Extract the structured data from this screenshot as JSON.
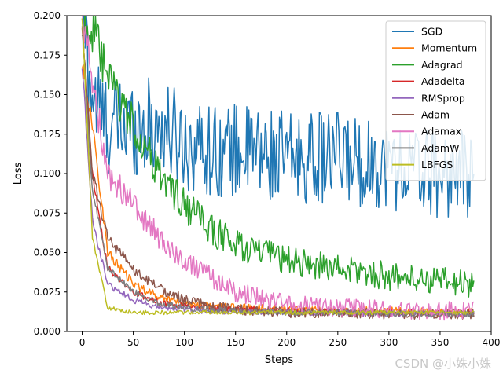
{
  "chart_data": {
    "type": "line",
    "title": "",
    "xlabel": "Steps",
    "ylabel": "Loss",
    "xlim": [
      -15,
      400
    ],
    "ylim": [
      0.0,
      0.2
    ],
    "xticks": [
      0,
      50,
      100,
      150,
      200,
      250,
      300,
      350,
      400
    ],
    "xtick_labels": [
      "0",
      "50",
      "100",
      "150",
      "200",
      "250",
      "300",
      "350",
      "400"
    ],
    "yticks": [
      0.0,
      0.025,
      0.05,
      0.075,
      0.1,
      0.125,
      0.15,
      0.175,
      0.2
    ],
    "ytick_labels": [
      "0.000",
      "0.025",
      "0.050",
      "0.075",
      "0.100",
      "0.125",
      "0.150",
      "0.175",
      "0.200"
    ],
    "legend_position": "top-right",
    "steps": 384,
    "series": [
      {
        "name": "SGD",
        "color": "#1f77b4",
        "x": [
          0,
          10,
          25,
          50,
          75,
          100,
          125,
          150,
          200,
          250,
          300,
          350,
          383
        ],
        "y": [
          0.2,
          0.15,
          0.13,
          0.13,
          0.13,
          0.12,
          0.115,
          0.115,
          0.11,
          0.11,
          0.105,
          0.1,
          0.1
        ],
        "noise": 0.028
      },
      {
        "name": "Momentum",
        "color": "#ff7f0e",
        "x": [
          0,
          10,
          25,
          50,
          75,
          100,
          125,
          150,
          200,
          250,
          300,
          350,
          383
        ],
        "y": [
          0.17,
          0.13,
          0.05,
          0.03,
          0.022,
          0.018,
          0.016,
          0.015,
          0.014,
          0.013,
          0.013,
          0.012,
          0.012
        ],
        "noise": 0.004
      },
      {
        "name": "Adagrad",
        "color": "#2ca02c",
        "x": [
          0,
          10,
          25,
          50,
          75,
          100,
          125,
          150,
          200,
          250,
          300,
          350,
          383
        ],
        "y": [
          0.2,
          0.19,
          0.16,
          0.13,
          0.1,
          0.08,
          0.065,
          0.055,
          0.045,
          0.04,
          0.035,
          0.032,
          0.03
        ],
        "noise": 0.012
      },
      {
        "name": "Adadelta",
        "color": "#d62728",
        "x": [
          0,
          10,
          25,
          50,
          75,
          100,
          125,
          150,
          200,
          250,
          300,
          350,
          383
        ],
        "y": [
          0.19,
          0.1,
          0.04,
          0.025,
          0.018,
          0.016,
          0.015,
          0.014,
          0.013,
          0.013,
          0.012,
          0.012,
          0.012
        ],
        "noise": 0.003
      },
      {
        "name": "RMSprop",
        "color": "#9467bd",
        "x": [
          0,
          10,
          25,
          50,
          75,
          100,
          125,
          150,
          200,
          250,
          300,
          350,
          383
        ],
        "y": [
          0.17,
          0.07,
          0.03,
          0.02,
          0.015,
          0.014,
          0.013,
          0.013,
          0.012,
          0.012,
          0.011,
          0.011,
          0.011
        ],
        "noise": 0.003
      },
      {
        "name": "Adam",
        "color": "#8c564b",
        "x": [
          0,
          10,
          25,
          50,
          75,
          100,
          125,
          150,
          200,
          250,
          300,
          350,
          383
        ],
        "y": [
          0.19,
          0.1,
          0.06,
          0.038,
          0.028,
          0.02,
          0.016,
          0.014,
          0.012,
          0.012,
          0.011,
          0.011,
          0.011
        ],
        "noise": 0.005
      },
      {
        "name": "Adamax",
        "color": "#e377c2",
        "x": [
          0,
          10,
          25,
          50,
          75,
          100,
          125,
          150,
          200,
          250,
          300,
          350,
          383
        ],
        "y": [
          0.2,
          0.16,
          0.1,
          0.08,
          0.06,
          0.045,
          0.035,
          0.025,
          0.017,
          0.015,
          0.014,
          0.013,
          0.013
        ],
        "noise": 0.009
      },
      {
        "name": "AdamW",
        "color": "#7f7f7f",
        "x": [
          0,
          10,
          25,
          50,
          75,
          100,
          125,
          150,
          200,
          250,
          300,
          350,
          383
        ],
        "y": [
          0.19,
          0.09,
          0.04,
          0.025,
          0.018,
          0.015,
          0.014,
          0.013,
          0.012,
          0.012,
          0.011,
          0.011,
          0.011
        ],
        "noise": 0.003
      },
      {
        "name": "LBFGS",
        "color": "#bcbd22",
        "x": [
          0,
          10,
          25,
          50,
          75,
          100,
          125,
          150,
          200,
          250,
          300,
          350,
          383
        ],
        "y": [
          0.2,
          0.06,
          0.015,
          0.012,
          0.012,
          0.012,
          0.012,
          0.012,
          0.012,
          0.012,
          0.012,
          0.012,
          0.012
        ],
        "noise": 0.002
      }
    ]
  },
  "watermark": "CSDN @小姝小姝"
}
